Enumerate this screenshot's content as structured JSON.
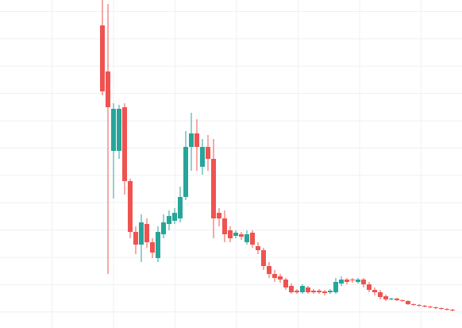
{
  "chart_data": {
    "type": "candlestick",
    "up_color": "#26a69a",
    "down_color": "#ef5350",
    "ylim": [
      0,
      413
    ],
    "categories": [
      null,
      null,
      null,
      null,
      null,
      null,
      null,
      null,
      null,
      null,
      null,
      null,
      null,
      null,
      null,
      null,
      null,
      null,
      null,
      null,
      null,
      null,
      null,
      null,
      null,
      null,
      null,
      null,
      null,
      null,
      null,
      null,
      null,
      null,
      null,
      null,
      null,
      null,
      null,
      null,
      null,
      null,
      null,
      null,
      null,
      null,
      null,
      null,
      null,
      null,
      null,
      null,
      null,
      null,
      null,
      null,
      null,
      null,
      null,
      null,
      null,
      null,
      null,
      null
    ],
    "open": [
      381,
      323,
      223,
      223,
      278,
      185,
      121,
      105,
      131,
      108,
      88,
      118,
      131,
      135,
      138,
      165,
      228,
      245,
      203,
      228,
      213,
      145,
      138,
      123,
      116,
      118,
      108,
      120,
      103,
      98,
      78,
      68,
      65,
      61,
      53,
      47,
      45,
      51,
      47,
      47,
      46,
      45,
      45,
      56,
      61,
      61,
      58,
      61,
      55,
      48,
      45,
      40,
      36,
      37,
      35,
      34,
      30,
      29,
      28,
      27,
      26,
      25,
      24,
      23
    ],
    "high": [
      413,
      408,
      283,
      281,
      283,
      188,
      128,
      143,
      138,
      113,
      128,
      143,
      148,
      151,
      178,
      248,
      271,
      263,
      238,
      243,
      238,
      151,
      148,
      128,
      123,
      121,
      123,
      123,
      108,
      101,
      83,
      73,
      68,
      63,
      56,
      49,
      55,
      53,
      49,
      49,
      48,
      49,
      63,
      65,
      63,
      63,
      63,
      63,
      58,
      51,
      48,
      42,
      38,
      38,
      36,
      35,
      31,
      30,
      29,
      28,
      27,
      26,
      25,
      24
    ],
    "low": [
      293,
      68,
      163,
      213,
      168,
      113,
      93,
      83,
      101,
      88,
      83,
      113,
      123,
      131,
      133,
      161,
      198,
      198,
      193,
      198,
      113,
      128,
      108,
      108,
      113,
      111,
      105,
      101,
      93,
      73,
      63,
      58,
      57,
      48,
      43,
      43,
      43,
      43,
      43,
      43,
      41,
      43,
      43,
      53,
      55,
      57,
      56,
      51,
      45,
      41,
      36,
      34,
      35,
      34,
      33,
      29,
      28,
      27,
      26,
      25,
      24,
      23,
      22,
      21
    ],
    "close": [
      298,
      278,
      276,
      276,
      185,
      121,
      105,
      133,
      108,
      95,
      121,
      133,
      141,
      145,
      165,
      228,
      245,
      228,
      228,
      213,
      138,
      138,
      118,
      113,
      120,
      115,
      118,
      105,
      98,
      78,
      68,
      63,
      61,
      51,
      45,
      45,
      53,
      45,
      45,
      45,
      44,
      47,
      58,
      61,
      58,
      60,
      61,
      55,
      48,
      45,
      39,
      36,
      37,
      35,
      34,
      30,
      29,
      28,
      27,
      26,
      25,
      24,
      23,
      22
    ]
  }
}
